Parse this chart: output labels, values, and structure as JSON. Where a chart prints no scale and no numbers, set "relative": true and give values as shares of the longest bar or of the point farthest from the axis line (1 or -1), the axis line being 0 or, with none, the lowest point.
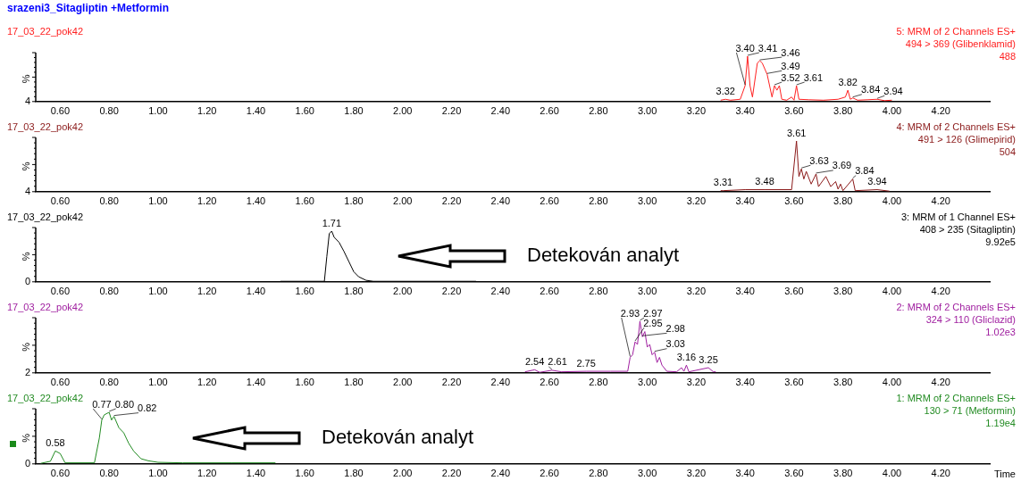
{
  "chart_data": [
    {
      "type": "line",
      "title": "srazeni3_Sitagliptin +Metformin",
      "subtitle": "17_03_22_pok42",
      "ylabel": "%",
      "relative": true,
      "xlim": [
        0.5,
        4.4
      ],
      "xticks": [
        {
          "value": 0.6,
          "label": "0.60"
        },
        {
          "value": 0.8,
          "label": "0.80"
        },
        {
          "value": 1.0,
          "label": "1.00"
        },
        {
          "value": 1.2,
          "label": "1.20"
        },
        {
          "value": 1.4,
          "label": "1.40"
        },
        {
          "value": 1.6,
          "label": "1.60"
        },
        {
          "value": 1.8,
          "label": "1.80"
        },
        {
          "value": 2.0,
          "label": "2.00"
        },
        {
          "value": 2.2,
          "label": "2.20"
        },
        {
          "value": 2.4,
          "label": "2.40"
        },
        {
          "value": 2.6,
          "label": "2.60"
        },
        {
          "value": 2.8,
          "label": "2.80"
        },
        {
          "value": 3.0,
          "label": "3.00"
        },
        {
          "value": 3.2,
          "label": "3.20"
        },
        {
          "value": 3.4,
          "label": "3.40"
        },
        {
          "value": 3.6,
          "label": "3.60"
        },
        {
          "value": 3.8,
          "label": "3.80"
        },
        {
          "value": 4.0,
          "label": "4.00"
        },
        {
          "value": 4.2,
          "label": "4.20"
        }
      ],
      "series": [
        {
          "color": "#ff2020",
          "x": [
            3.3,
            3.32,
            3.34,
            3.38,
            3.4,
            3.41,
            3.42,
            3.43,
            3.45,
            3.46,
            3.47,
            3.49,
            3.5,
            3.51,
            3.52,
            3.53,
            3.54,
            3.55,
            3.57,
            3.59,
            3.6,
            3.61,
            3.62,
            3.66,
            3.72,
            3.78,
            3.81,
            3.82,
            3.83,
            3.84,
            3.86,
            3.9,
            3.94,
            3.97,
            4.0
          ],
          "values": [
            0.03,
            0.05,
            0.03,
            0.05,
            0.35,
            1.0,
            0.35,
            0.1,
            0.85,
            0.9,
            0.85,
            0.6,
            0.35,
            0.1,
            0.35,
            0.25,
            0.35,
            0.05,
            0.03,
            0.1,
            0.03,
            0.35,
            0.05,
            0.04,
            0.03,
            0.05,
            0.1,
            0.25,
            0.05,
            0.08,
            0.03,
            0.04,
            0.05,
            0.02,
            0.03
          ]
        }
      ],
      "annotations": [
        "5: MRM of 2 Channels ES+",
        "494 > 369 (Glibenklamid)",
        "488",
        "4",
        {
          "text": "3.32",
          "x": 3.32,
          "y": 0.05
        },
        {
          "text": "3.40",
          "x": 3.4,
          "y": 0.35
        },
        {
          "text": "3.41",
          "x": 3.41,
          "y": 1.0
        },
        {
          "text": "3.46",
          "x": 3.46,
          "y": 0.9
        },
        {
          "text": "3.49",
          "x": 3.49,
          "y": 0.6
        },
        {
          "text": "3.52",
          "x": 3.52,
          "y": 0.35
        },
        {
          "text": "3.61",
          "x": 3.61,
          "y": 0.35
        },
        {
          "text": "3.82",
          "x": 3.82,
          "y": 0.25
        },
        {
          "text": "3.84",
          "x": 3.84,
          "y": 0.08
        },
        {
          "text": "3.94",
          "x": 3.94,
          "y": 0.05
        }
      ]
    },
    {
      "type": "line",
      "title": "17_03_22_pok42",
      "ylabel": "%",
      "relative": true,
      "xlim": [
        0.5,
        4.4
      ],
      "xticks": [
        {
          "value": 0.6,
          "label": "0.60"
        },
        {
          "value": 0.8,
          "label": "0.80"
        },
        {
          "value": 1.0,
          "label": "1.00"
        },
        {
          "value": 1.2,
          "label": "1.20"
        },
        {
          "value": 1.4,
          "label": "1.40"
        },
        {
          "value": 1.6,
          "label": "1.60"
        },
        {
          "value": 1.8,
          "label": "1.80"
        },
        {
          "value": 2.0,
          "label": "2.00"
        },
        {
          "value": 2.2,
          "label": "2.20"
        },
        {
          "value": 2.4,
          "label": "2.40"
        },
        {
          "value": 2.6,
          "label": "2.60"
        },
        {
          "value": 2.8,
          "label": "2.80"
        },
        {
          "value": 3.0,
          "label": "3.00"
        },
        {
          "value": 3.2,
          "label": "3.20"
        },
        {
          "value": 3.4,
          "label": "3.40"
        },
        {
          "value": 3.6,
          "label": "3.60"
        },
        {
          "value": 3.8,
          "label": "3.80"
        },
        {
          "value": 4.0,
          "label": "4.00"
        },
        {
          "value": 4.2,
          "label": "4.20"
        }
      ],
      "series": [
        {
          "color": "#8b1a1a",
          "x": [
            3.3,
            3.31,
            3.4,
            3.48,
            3.59,
            3.61,
            3.62,
            3.63,
            3.64,
            3.65,
            3.67,
            3.69,
            3.7,
            3.73,
            3.75,
            3.77,
            3.78,
            3.79,
            3.8,
            3.84,
            3.85,
            3.94,
            3.99
          ],
          "values": [
            0.02,
            0.02,
            0.04,
            0.04,
            0.04,
            1.0,
            0.3,
            0.45,
            0.25,
            0.4,
            0.15,
            0.35,
            0.1,
            0.3,
            0.1,
            0.2,
            0.05,
            0.15,
            0.02,
            0.25,
            0.02,
            0.04,
            0.01
          ]
        }
      ],
      "annotations": [
        "4: MRM of 2 Channels ES+",
        "491 > 126 (Glimepirid)",
        "504",
        "4",
        {
          "text": "3.31",
          "x": 3.31,
          "y": 0.02
        },
        {
          "text": "3.48",
          "x": 3.48,
          "y": 0.04
        },
        {
          "text": "3.61",
          "x": 3.61,
          "y": 1.0
        },
        {
          "text": "3.63",
          "x": 3.63,
          "y": 0.45
        },
        {
          "text": "3.69",
          "x": 3.69,
          "y": 0.35
        },
        {
          "text": "3.84",
          "x": 3.84,
          "y": 0.25
        },
        {
          "text": "3.94",
          "x": 3.94,
          "y": 0.04
        }
      ]
    },
    {
      "type": "line",
      "title": "17_03_22_pok42",
      "ylabel": "%",
      "relative": true,
      "xlim": [
        0.5,
        4.4
      ],
      "xticks": [
        {
          "value": 0.6,
          "label": "0.60"
        },
        {
          "value": 0.8,
          "label": "0.80"
        },
        {
          "value": 1.0,
          "label": "1.00"
        },
        {
          "value": 1.2,
          "label": "1.20"
        },
        {
          "value": 1.4,
          "label": "1.40"
        },
        {
          "value": 1.6,
          "label": "1.60"
        },
        {
          "value": 1.8,
          "label": "1.80"
        },
        {
          "value": 2.0,
          "label": "2.00"
        },
        {
          "value": 2.2,
          "label": "2.20"
        },
        {
          "value": 2.4,
          "label": "2.40"
        },
        {
          "value": 2.6,
          "label": "2.60"
        },
        {
          "value": 2.8,
          "label": "2.80"
        },
        {
          "value": 3.0,
          "label": "3.00"
        },
        {
          "value": 3.2,
          "label": "3.20"
        },
        {
          "value": 3.4,
          "label": "3.40"
        },
        {
          "value": 3.6,
          "label": "3.60"
        },
        {
          "value": 3.8,
          "label": "3.80"
        },
        {
          "value": 4.0,
          "label": "4.00"
        },
        {
          "value": 4.2,
          "label": "4.20"
        }
      ],
      "series": [
        {
          "color": "#000000",
          "x": [
            1.5,
            1.68,
            1.69,
            1.7,
            1.71,
            1.72,
            1.74,
            1.76,
            1.78,
            1.8,
            1.82,
            1.85,
            1.88,
            2.3
          ],
          "values": [
            0.01,
            0.01,
            0.5,
            0.95,
            1.0,
            0.88,
            0.78,
            0.6,
            0.4,
            0.2,
            0.1,
            0.03,
            0.01,
            0.01
          ]
        }
      ],
      "annotations": [
        "3: MRM of 1 Channel ES+",
        "408 > 235 (Sitagliptin)",
        "9.92e5",
        "0",
        "Detekován analyt",
        {
          "text": "1.71",
          "x": 1.71,
          "y": 1.0
        }
      ]
    },
    {
      "type": "line",
      "title": "17_03_22_pok42",
      "ylabel": "%",
      "relative": true,
      "xlim": [
        0.5,
        4.4
      ],
      "xticks": [
        {
          "value": 0.6,
          "label": "0.60"
        },
        {
          "value": 0.8,
          "label": "0.80"
        },
        {
          "value": 1.0,
          "label": "1.00"
        },
        {
          "value": 1.2,
          "label": "1.20"
        },
        {
          "value": 1.4,
          "label": "1.40"
        },
        {
          "value": 1.6,
          "label": "1.60"
        },
        {
          "value": 1.8,
          "label": "1.80"
        },
        {
          "value": 2.0,
          "label": "2.00"
        },
        {
          "value": 2.2,
          "label": "2.20"
        },
        {
          "value": 2.4,
          "label": "2.40"
        },
        {
          "value": 2.6,
          "label": "2.60"
        },
        {
          "value": 2.8,
          "label": "2.80"
        },
        {
          "value": 3.0,
          "label": "3.00"
        },
        {
          "value": 3.2,
          "label": "3.20"
        },
        {
          "value": 3.4,
          "label": "3.40"
        },
        {
          "value": 3.6,
          "label": "3.60"
        },
        {
          "value": 3.8,
          "label": "3.80"
        },
        {
          "value": 4.0,
          "label": "4.00"
        },
        {
          "value": 4.2,
          "label": "4.20"
        }
      ],
      "series": [
        {
          "color": "#a020a0",
          "x": [
            2.5,
            2.54,
            2.56,
            2.61,
            2.65,
            2.75,
            2.85,
            2.92,
            2.93,
            2.94,
            2.95,
            2.96,
            2.97,
            2.98,
            2.99,
            3.0,
            3.01,
            3.02,
            3.03,
            3.04,
            3.05,
            3.06,
            3.08,
            3.12,
            3.14,
            3.15,
            3.16,
            3.17,
            3.25,
            3.27,
            3.28
          ],
          "values": [
            0.02,
            0.06,
            0.01,
            0.05,
            0.02,
            0.03,
            0.03,
            0.03,
            0.3,
            0.35,
            0.6,
            0.55,
            1.0,
            0.7,
            0.8,
            0.5,
            0.55,
            0.35,
            0.4,
            0.2,
            0.3,
            0.15,
            0.03,
            0.02,
            0.1,
            0.03,
            0.15,
            0.02,
            0.1,
            0.02,
            0.02
          ]
        }
      ],
      "annotations": [
        "2: MRM of 2 Channels ES+",
        "324 > 110 (Gliclazid)",
        "1.02e3",
        "2",
        {
          "text": "2.54",
          "x": 2.54,
          "y": 0.06
        },
        {
          "text": "2.61",
          "x": 2.61,
          "y": 0.05
        },
        {
          "text": "2.75",
          "x": 2.75,
          "y": 0.03
        },
        {
          "text": "2.93",
          "x": 2.93,
          "y": 0.3
        },
        {
          "text": "2.95",
          "x": 2.95,
          "y": 0.6
        },
        {
          "text": "2.97",
          "x": 2.97,
          "y": 1.0
        },
        {
          "text": "2.98",
          "x": 2.98,
          "y": 0.7
        },
        {
          "text": "3.03",
          "x": 3.03,
          "y": 0.4
        },
        {
          "text": "3.16",
          "x": 3.16,
          "y": 0.15
        },
        {
          "text": "3.25",
          "x": 3.25,
          "y": 0.1
        }
      ]
    },
    {
      "type": "line",
      "title": "17_03_22_pok42",
      "ylabel": "%",
      "xlabel": "Time",
      "relative": true,
      "xlim": [
        0.5,
        4.4
      ],
      "xticks": [
        {
          "value": 0.6,
          "label": "0.60"
        },
        {
          "value": 0.8,
          "label": "0.80"
        },
        {
          "value": 1.0,
          "label": "1.00"
        },
        {
          "value": 1.2,
          "label": "1.20"
        },
        {
          "value": 1.4,
          "label": "1.40"
        },
        {
          "value": 1.6,
          "label": "1.60"
        },
        {
          "value": 1.8,
          "label": "1.80"
        },
        {
          "value": 2.0,
          "label": "2.00"
        },
        {
          "value": 2.2,
          "label": "2.20"
        },
        {
          "value": 2.4,
          "label": "2.40"
        },
        {
          "value": 2.6,
          "label": "2.60"
        },
        {
          "value": 2.8,
          "label": "2.80"
        },
        {
          "value": 3.0,
          "label": "3.00"
        },
        {
          "value": 3.2,
          "label": "3.20"
        },
        {
          "value": 3.4,
          "label": "3.40"
        },
        {
          "value": 3.6,
          "label": "3.60"
        },
        {
          "value": 3.8,
          "label": "3.80"
        },
        {
          "value": 4.0,
          "label": "4.00"
        },
        {
          "value": 4.2,
          "label": "4.20"
        }
      ],
      "series": [
        {
          "color": "#228b22",
          "x": [
            0.52,
            0.56,
            0.58,
            0.6,
            0.62,
            0.74,
            0.76,
            0.77,
            0.78,
            0.8,
            0.81,
            0.82,
            0.84,
            0.86,
            0.88,
            0.9,
            0.93,
            0.96,
            1.0,
            1.1,
            1.3,
            1.48
          ],
          "values": [
            0.01,
            0.05,
            0.25,
            0.2,
            0.02,
            0.02,
            0.5,
            0.85,
            0.95,
            1.0,
            0.85,
            0.92,
            0.7,
            0.6,
            0.4,
            0.25,
            0.1,
            0.06,
            0.03,
            0.02,
            0.02,
            0.02
          ]
        }
      ],
      "annotations": [
        "1: MRM of 2 Channels ES+",
        "130 > 71 (Metformin)",
        "1.19e4",
        "0",
        "Detekován analyt",
        {
          "text": "0.58",
          "x": 0.58,
          "y": 0.25
        },
        {
          "text": "0.77",
          "x": 0.77,
          "y": 0.85
        },
        {
          "text": "0.80",
          "x": 0.8,
          "y": 1.0
        },
        {
          "text": "0.82",
          "x": 0.82,
          "y": 0.92
        }
      ]
    }
  ]
}
